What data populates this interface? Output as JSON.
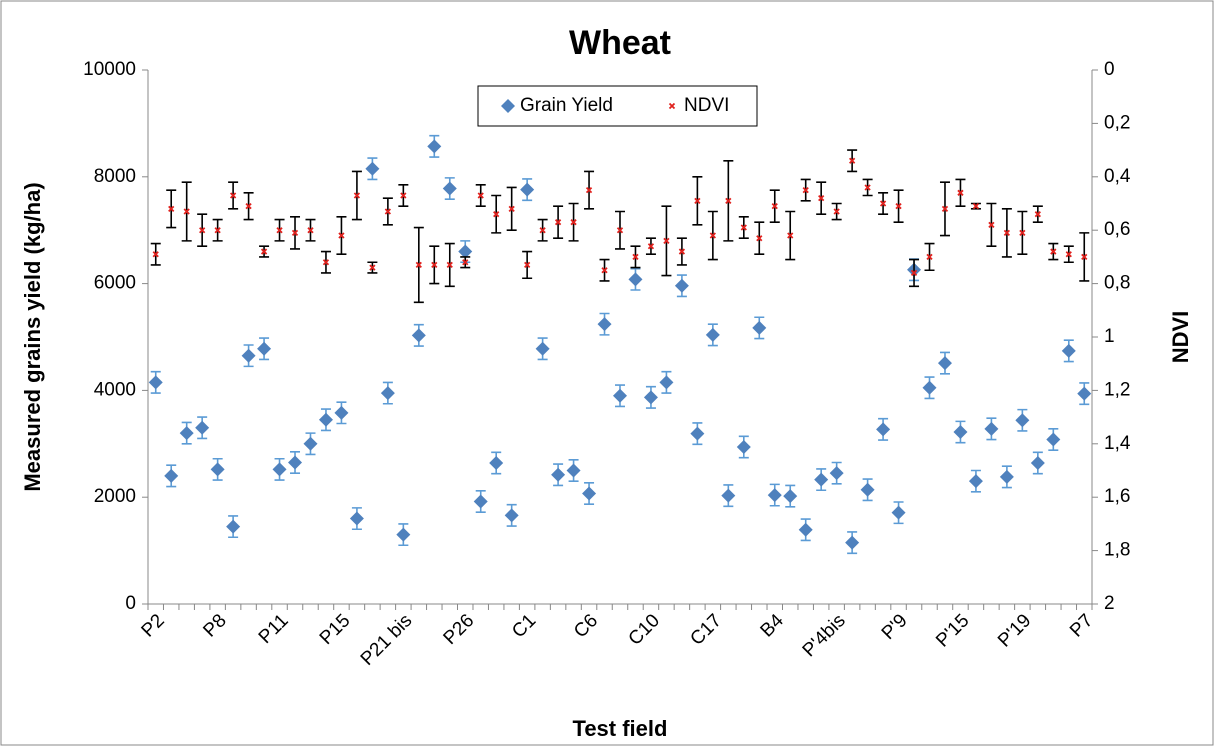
{
  "chart_data": {
    "type": "scatter",
    "title": "Wheat",
    "x_label": "Test field",
    "y_label": "Measured grains yield (kg/ha)",
    "y2_label": "NDVI",
    "categories": [
      "P2",
      null,
      null,
      null,
      "P8",
      null,
      null,
      null,
      "P11",
      null,
      null,
      null,
      "P15",
      null,
      null,
      null,
      "P21 bis",
      null,
      null,
      null,
      "P26",
      null,
      null,
      null,
      "C1",
      null,
      null,
      null,
      "C6",
      null,
      null,
      null,
      "C10",
      null,
      null,
      null,
      "C17",
      null,
      null,
      null,
      "B4",
      null,
      null,
      null,
      "P'4bis",
      null,
      null,
      null,
      "P'9",
      null,
      null,
      null,
      "P'15",
      null,
      null,
      null,
      "P'19",
      null,
      null,
      null,
      "P7"
    ],
    "series": [
      {
        "name": "Grain Yield",
        "color": "#4f81bd",
        "error_color": "#5b9bd5",
        "marker": "diamond",
        "values": [
          4150,
          2400,
          3200,
          3300,
          2520,
          1450,
          4650,
          4780,
          2520,
          2650,
          3000,
          3450,
          3580,
          1600,
          8150,
          3950,
          1300,
          5030,
          8570,
          7780,
          6600,
          1920,
          2640,
          1660,
          7760,
          4780,
          2420,
          2500,
          2070,
          5240,
          3900,
          6080,
          3870,
          4150,
          5960,
          3190,
          5040,
          2030,
          2940,
          5170,
          2040,
          2020,
          1390,
          2330,
          2450,
          1150,
          2140,
          3270,
          1710,
          6260,
          4050,
          4510,
          3220,
          2300,
          3280,
          2380,
          3440,
          2640,
          3080,
          4740,
          3940
        ],
        "errors": [
          200,
          200,
          200,
          200,
          200,
          200,
          200,
          200,
          200,
          200,
          200,
          200,
          200,
          200,
          200,
          200,
          200,
          200,
          200,
          200,
          200,
          200,
          200,
          200,
          200,
          200,
          200,
          200,
          200,
          200,
          200,
          200,
          200,
          200,
          200,
          200,
          200,
          200,
          200,
          200,
          200,
          200,
          200,
          200,
          200,
          200,
          200,
          200,
          200,
          200,
          200,
          200,
          200,
          200,
          200,
          200,
          200,
          200,
          200,
          200,
          200
        ]
      },
      {
        "name": "NDVI",
        "color": "#e0211d",
        "error_color": "#000000",
        "marker": "x",
        "axis": "y2",
        "values": [
          0.69,
          0.52,
          0.53,
          0.6,
          0.6,
          0.47,
          0.51,
          0.68,
          0.6,
          0.61,
          0.6,
          0.72,
          0.62,
          0.47,
          0.74,
          0.53,
          0.47,
          0.73,
          0.73,
          0.73,
          0.72,
          0.47,
          0.54,
          0.52,
          0.73,
          0.6,
          0.57,
          0.57,
          0.45,
          0.75,
          0.6,
          0.7,
          0.66,
          0.64,
          0.68,
          0.49,
          0.62,
          0.49,
          0.59,
          0.63,
          0.51,
          0.62,
          0.45,
          0.48,
          0.53,
          0.34,
          0.44,
          0.5,
          0.51,
          0.76,
          0.7,
          0.52,
          0.46,
          0.51,
          0.58,
          0.61,
          0.61,
          0.54,
          0.68,
          0.69,
          0.7
        ],
        "errors": [
          0.04,
          0.07,
          0.11,
          0.06,
          0.04,
          0.05,
          0.05,
          0.02,
          0.04,
          0.06,
          0.04,
          0.04,
          0.07,
          0.09,
          0.02,
          0.05,
          0.04,
          0.14,
          0.07,
          0.08,
          0.02,
          0.04,
          0.07,
          0.08,
          0.05,
          0.04,
          0.06,
          0.07,
          0.07,
          0.04,
          0.07,
          0.04,
          0.03,
          0.13,
          0.05,
          0.09,
          0.09,
          0.15,
          0.04,
          0.06,
          0.06,
          0.09,
          0.04,
          0.06,
          0.03,
          0.04,
          0.03,
          0.04,
          0.06,
          0.05,
          0.05,
          0.1,
          0.05,
          0.01,
          0.08,
          0.09,
          0.08,
          0.03,
          0.03,
          0.03,
          0.09
        ]
      }
    ],
    "ylim": [
      0,
      10000
    ],
    "yticks": [
      0,
      2000,
      4000,
      6000,
      8000,
      10000
    ],
    "y2lim": [
      0,
      2
    ],
    "y2_reversed": true,
    "y2ticks": [
      0,
      {
        "value": 0.2,
        "label": "0,2"
      },
      {
        "value": 0.4,
        "label": "0,4"
      },
      {
        "value": 0.6,
        "label": "0,6"
      },
      {
        "value": 0.8,
        "label": "0,8"
      },
      1,
      {
        "value": 1.2,
        "label": "1,2"
      },
      {
        "value": 1.4,
        "label": "1,4"
      },
      {
        "value": 1.6,
        "label": "1,6"
      },
      {
        "value": 1.8,
        "label": "1,8"
      },
      2
    ],
    "legend": "top",
    "grid": false
  }
}
